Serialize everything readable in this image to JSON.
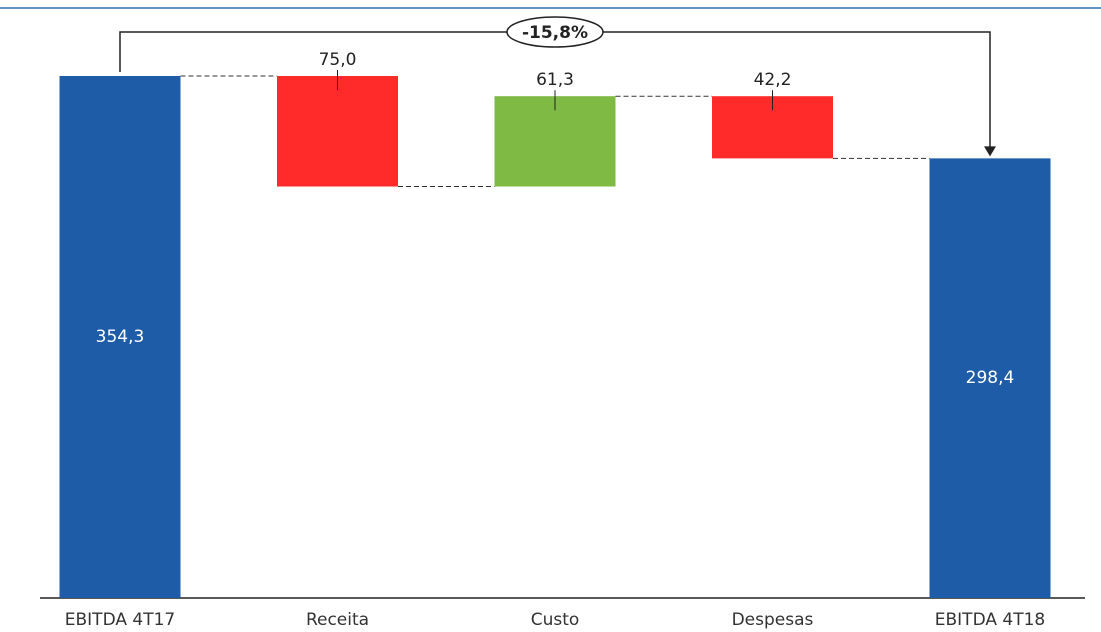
{
  "chart_data": {
    "type": "waterfall",
    "categories": [
      "EBITDA 4T17",
      "Receita",
      "Custo",
      "Despesas",
      "EBITDA 4T18"
    ],
    "values": [
      354.3,
      -75.0,
      61.3,
      -42.2,
      298.4
    ],
    "value_labels": [
      "354,3",
      "75,0",
      "61,3",
      "42,2",
      "298,4"
    ],
    "colors": [
      "#1f5ca8",
      "#ff2a2a",
      "#7fba45",
      "#ff2a2a",
      "#1f5ca8"
    ],
    "annotation": "-15,8%"
  }
}
